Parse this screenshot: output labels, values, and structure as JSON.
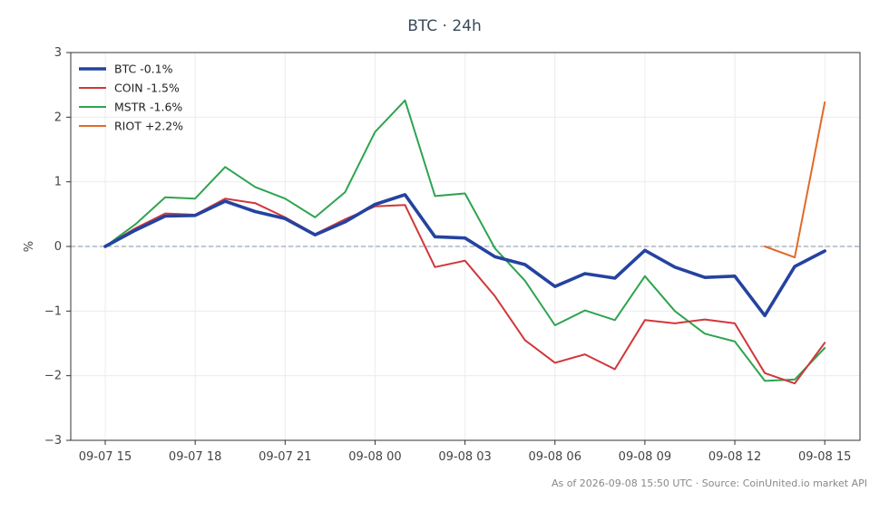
{
  "chart_data": {
    "type": "line",
    "title": "BTC · 24h",
    "xlabel": "",
    "ylabel": "%",
    "ylim": [
      -3,
      3
    ],
    "yticks": [
      3,
      2,
      1,
      0,
      -1,
      -2,
      -3
    ],
    "ytick_labels": [
      "3",
      "2",
      "1",
      "0",
      "−1",
      "−2",
      "−3"
    ],
    "x_tick_index": [
      0,
      3,
      6,
      9,
      12,
      15,
      18,
      21,
      24
    ],
    "x_tick_labels": [
      "09-07 15",
      "09-07 18",
      "09-07 21",
      "09-08 00",
      "09-08 03",
      "09-08 06",
      "09-08 09",
      "09-08 12",
      "09-08 15"
    ],
    "x": [
      "09-07 15",
      "09-07 16",
      "09-07 17",
      "09-07 18",
      "09-07 19",
      "09-07 20",
      "09-07 21",
      "09-07 22",
      "09-07 23",
      "09-08 00",
      "09-08 01",
      "09-08 02",
      "09-08 03",
      "09-08 04",
      "09-08 05",
      "09-08 06",
      "09-08 07",
      "09-08 08",
      "09-08 09",
      "09-08 10",
      "09-08 11",
      "09-08 12",
      "09-08 13",
      "09-08 14",
      "09-08 15"
    ],
    "zero_line": true,
    "grid": true,
    "legend_position": "top-left",
    "series": [
      {
        "name": "BTC -0.1%",
        "color": "#2443a0",
        "values": [
          0.0,
          0.25,
          0.47,
          0.48,
          0.7,
          0.54,
          0.43,
          0.18,
          0.38,
          0.65,
          0.8,
          0.15,
          0.13,
          -0.16,
          -0.28,
          -0.62,
          -0.42,
          -0.49,
          -0.06,
          -0.32,
          -0.48,
          -0.46,
          -1.07,
          -0.31,
          -0.07
        ]
      },
      {
        "name": "COIN -1.5%",
        "color": "#d0373a",
        "values": [
          0.0,
          0.28,
          0.51,
          0.49,
          0.74,
          0.67,
          0.45,
          0.19,
          0.42,
          0.62,
          0.64,
          -0.32,
          -0.22,
          -0.77,
          -1.45,
          -1.8,
          -1.67,
          -1.9,
          -1.14,
          -1.19,
          -1.13,
          -1.19,
          -1.96,
          -2.12,
          -1.49
        ]
      },
      {
        "name": "MSTR -1.6%",
        "color": "#2ea44f",
        "values": [
          0.0,
          0.34,
          0.76,
          0.74,
          1.23,
          0.92,
          0.74,
          0.45,
          0.84,
          1.77,
          2.26,
          0.78,
          0.82,
          -0.03,
          -0.53,
          -1.22,
          -0.99,
          -1.14,
          -0.46,
          -1.0,
          -1.35,
          -1.47,
          -2.08,
          -2.06,
          -1.57
        ]
      },
      {
        "name": "RIOT +2.2%",
        "color": "#e06a28",
        "values": [
          null,
          null,
          null,
          null,
          null,
          null,
          null,
          null,
          null,
          null,
          null,
          null,
          null,
          null,
          null,
          null,
          null,
          null,
          null,
          null,
          null,
          null,
          0.0,
          -0.17,
          2.23
        ]
      }
    ]
  },
  "footer": {
    "source": "As of 2026-09-08 15:50 UTC · Source: CoinUnited.io market API"
  }
}
